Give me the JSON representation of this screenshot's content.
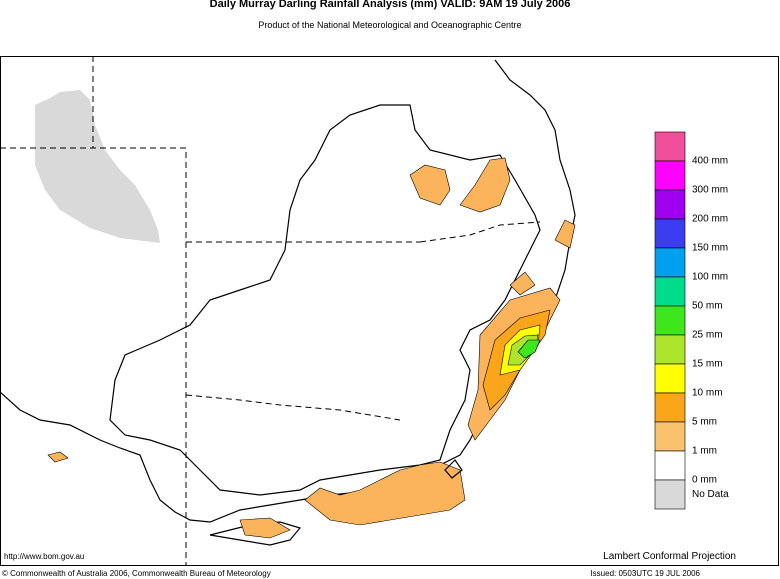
{
  "header": {
    "title": "Daily Murray Darling Rainfall Analysis (mm)  VALID: 9AM 19 July 2006",
    "subtitle": "Product of the National Meteorological and Oceanographic Centre"
  },
  "legend": {
    "colors": [
      "#f0509b",
      "#ff00ff",
      "#a000f0",
      "#3c3cf0",
      "#00a0f0",
      "#00dc8c",
      "#3ee61c",
      "#ade52c",
      "#ffff00",
      "#faa51a",
      "#fbc26e",
      "#ffffff",
      "#d9d9d9"
    ],
    "labels": [
      "400 mm",
      "300 mm",
      "200 mm",
      "150 mm",
      "100 mm",
      "50 mm",
      "25 mm",
      "15 mm",
      "10 mm",
      "5 mm",
      "1 mm",
      "0 mm",
      "No Data"
    ]
  },
  "footer": {
    "url": "http://www.bom.gov.au",
    "projection": "Lambert Conformal Projection",
    "copyright": "© Commonwealth of Australia 2006, Commonwealth Bureau of Meteorology",
    "issued": "Issued: 0503UTC 19 JUL 2006"
  }
}
